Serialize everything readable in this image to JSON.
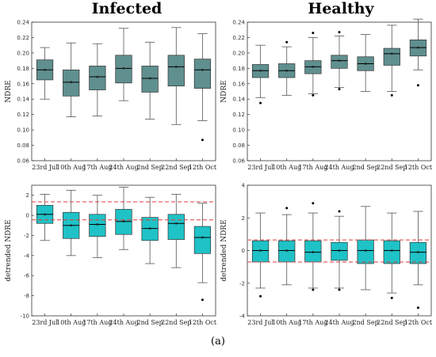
{
  "figure": {
    "panel_label": "(a)",
    "col_titles": [
      "Infected",
      "Healthy"
    ]
  },
  "colors": {
    "top_box": "#5f8f8f",
    "bottom_box": "#1fc2c6",
    "median": "#000000",
    "whisker": "#555555",
    "outlier": "#000000",
    "ref_line": "#e03a3a"
  },
  "chart_data": [
    {
      "type": "box",
      "title": "Infected",
      "ylabel": "NDRE",
      "ylim": [
        0.06,
        0.24
      ],
      "yticks": [
        0.06,
        0.08,
        0.1,
        0.12,
        0.14,
        0.16,
        0.18,
        0.2,
        0.22,
        0.24
      ],
      "tick_labels": [
        "0.06",
        "0.08",
        "0.10",
        "0.12",
        "0.14",
        "0.16",
        "0.18",
        "0.20",
        "0.22",
        "0.24"
      ],
      "categories": [
        "23rd Jul",
        "10th Aug",
        "17th Aug",
        "24th Aug",
        "2nd Sep",
        "22nd Sep",
        "12th Oct"
      ],
      "boxes": [
        {
          "min": 0.14,
          "q1": 0.165,
          "median": 0.178,
          "q3": 0.191,
          "max": 0.207,
          "outliers": []
        },
        {
          "min": 0.117,
          "q1": 0.144,
          "median": 0.162,
          "q3": 0.178,
          "max": 0.213,
          "outliers": []
        },
        {
          "min": 0.118,
          "q1": 0.152,
          "median": 0.169,
          "q3": 0.183,
          "max": 0.212,
          "outliers": []
        },
        {
          "min": 0.138,
          "q1": 0.161,
          "median": 0.18,
          "q3": 0.197,
          "max": 0.232,
          "outliers": []
        },
        {
          "min": 0.114,
          "q1": 0.149,
          "median": 0.167,
          "q3": 0.183,
          "max": 0.214,
          "outliers": []
        },
        {
          "min": 0.107,
          "q1": 0.157,
          "median": 0.182,
          "q3": 0.197,
          "max": 0.233,
          "outliers": []
        },
        {
          "min": 0.112,
          "q1": 0.154,
          "median": 0.178,
          "q3": 0.192,
          "max": 0.225,
          "outliers": [
            0.087
          ]
        }
      ],
      "ref_lines": []
    },
    {
      "type": "box",
      "title": "Healthy",
      "ylabel": "NDRE",
      "ylim": [
        0.06,
        0.24
      ],
      "yticks": [
        0.06,
        0.08,
        0.1,
        0.12,
        0.14,
        0.16,
        0.18,
        0.2,
        0.22,
        0.24
      ],
      "tick_labels": [
        "0.06",
        "0.08",
        "0.10",
        "0.12",
        "0.14",
        "0.16",
        "0.18",
        "0.20",
        "0.22",
        "0.24"
      ],
      "categories": [
        "23rd Jul",
        "10th Aug",
        "17th Aug",
        "24th Aug",
        "2nd Sep",
        "22nd Sep",
        "12th Oct"
      ],
      "boxes": [
        {
          "min": 0.142,
          "q1": 0.168,
          "median": 0.177,
          "q3": 0.185,
          "max": 0.21,
          "outliers": [
            0.135
          ]
        },
        {
          "min": 0.145,
          "q1": 0.168,
          "median": 0.177,
          "q3": 0.186,
          "max": 0.208,
          "outliers": [
            0.214
          ]
        },
        {
          "min": 0.147,
          "q1": 0.173,
          "median": 0.182,
          "q3": 0.19,
          "max": 0.22,
          "outliers": [
            0.226,
            0.145
          ]
        },
        {
          "min": 0.155,
          "q1": 0.18,
          "median": 0.19,
          "q3": 0.197,
          "max": 0.222,
          "outliers": [
            0.227,
            0.153
          ]
        },
        {
          "min": 0.15,
          "q1": 0.177,
          "median": 0.186,
          "q3": 0.195,
          "max": 0.224,
          "outliers": []
        },
        {
          "min": 0.15,
          "q1": 0.184,
          "median": 0.199,
          "q3": 0.206,
          "max": 0.236,
          "outliers": [
            0.145
          ]
        },
        {
          "min": 0.178,
          "q1": 0.196,
          "median": 0.207,
          "q3": 0.217,
          "max": 0.244,
          "outliers": [
            0.158
          ]
        }
      ],
      "ref_lines": []
    },
    {
      "type": "box",
      "title": "",
      "ylabel": "detrended NDRE",
      "ylim": [
        -10,
        3
      ],
      "yticks": [
        -10,
        -8,
        -6,
        -4,
        -2,
        0,
        2
      ],
      "tick_labels": [
        "-10",
        "-8",
        "-6",
        "-4",
        "-2",
        "0",
        "2"
      ],
      "categories": [
        "23rd Jul",
        "10th Aug",
        "17th Aug",
        "24th Aug",
        "2nd Sep",
        "22nd Sep",
        "12th Oct"
      ],
      "boxes": [
        {
          "min": -2.5,
          "q1": -0.8,
          "median": 0.1,
          "q3": 1.0,
          "max": 2.1,
          "outliers": []
        },
        {
          "min": -4.0,
          "q1": -2.3,
          "median": -1.0,
          "q3": 0.3,
          "max": 2.5,
          "outliers": []
        },
        {
          "min": -4.2,
          "q1": -2.1,
          "median": -0.9,
          "q3": 0.1,
          "max": 2.0,
          "outliers": []
        },
        {
          "min": -3.4,
          "q1": -1.9,
          "median": -0.6,
          "q3": 0.6,
          "max": 2.8,
          "outliers": []
        },
        {
          "min": -4.8,
          "q1": -2.5,
          "median": -1.3,
          "q3": -0.2,
          "max": 1.8,
          "outliers": []
        },
        {
          "min": -5.2,
          "q1": -2.4,
          "median": -0.8,
          "q3": 0.1,
          "max": 2.1,
          "outliers": []
        },
        {
          "min": -6.7,
          "q1": -3.8,
          "median": -2.2,
          "q3": -1.1,
          "max": 1.2,
          "outliers": [
            -8.4
          ]
        }
      ],
      "ref_lines": [
        1.35,
        -0.45
      ]
    },
    {
      "type": "box",
      "title": "",
      "ylabel": "detrended NDRE",
      "ylim": [
        -4,
        4
      ],
      "yticks": [
        -4,
        -2,
        0,
        2,
        4
      ],
      "tick_labels": [
        "-4",
        "-2",
        "0",
        "2",
        "4"
      ],
      "categories": [
        "23rd Jul",
        "10th Aug",
        "17th Aug",
        "24th Aug",
        "2nd Sep",
        "22nd Sep",
        "12th Oct"
      ],
      "boxes": [
        {
          "min": -2.3,
          "q1": -0.7,
          "median": 0.0,
          "q3": 0.6,
          "max": 2.3,
          "outliers": [
            -2.8
          ]
        },
        {
          "min": -2.1,
          "q1": -0.7,
          "median": 0.0,
          "q3": 0.6,
          "max": 2.2,
          "outliers": [
            2.6
          ]
        },
        {
          "min": -2.3,
          "q1": -0.7,
          "median": -0.1,
          "q3": 0.6,
          "max": 2.3,
          "outliers": [
            2.9,
            -2.4
          ]
        },
        {
          "min": -2.3,
          "q1": -0.6,
          "median": 0.0,
          "q3": 0.5,
          "max": 2.1,
          "outliers": [
            2.4,
            -2.4
          ]
        },
        {
          "min": -2.4,
          "q1": -0.8,
          "median": 0.0,
          "q3": 0.65,
          "max": 2.7,
          "outliers": []
        },
        {
          "min": -2.6,
          "q1": -0.8,
          "median": 0.0,
          "q3": 0.6,
          "max": 2.3,
          "outliers": [
            -2.9
          ]
        },
        {
          "min": -2.1,
          "q1": -0.8,
          "median": -0.1,
          "q3": 0.5,
          "max": 2.4,
          "outliers": [
            -3.5
          ]
        }
      ],
      "ref_lines": [
        0.65,
        -0.7
      ]
    }
  ]
}
